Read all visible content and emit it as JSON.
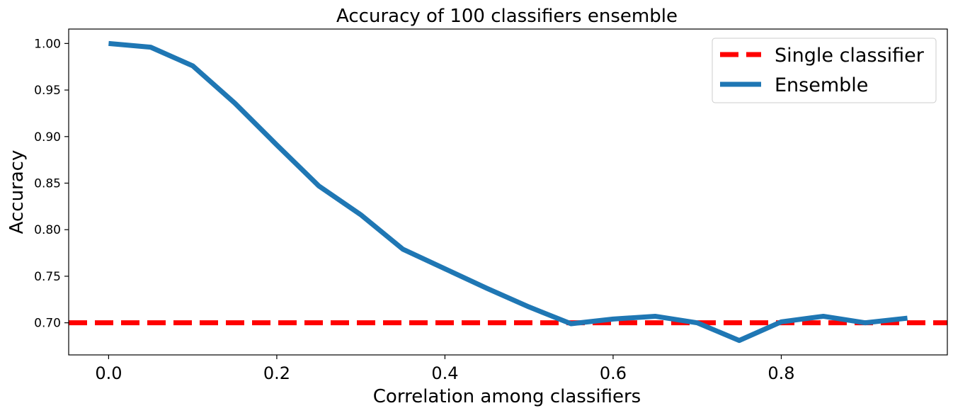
{
  "chart_data": {
    "type": "line",
    "title": "Accuracy of 100 classifiers ensemble",
    "xlabel": "Correlation among classifiers",
    "ylabel": "Accuracy",
    "xlim": [
      -0.0475,
      0.9975
    ],
    "ylim": [
      0.6655,
      1.0155
    ],
    "xticks": [
      "0.0",
      "0.2",
      "0.4",
      "0.6",
      "0.8"
    ],
    "xtick_values": [
      0.0,
      0.2,
      0.4,
      0.6,
      0.8
    ],
    "yticks": [
      "0.70",
      "0.75",
      "0.80",
      "0.85",
      "0.90",
      "0.95",
      "1.00"
    ],
    "ytick_values": [
      0.7,
      0.75,
      0.8,
      0.85,
      0.9,
      0.95,
      1.0
    ],
    "grid": false,
    "legend_position": "top-right",
    "series": [
      {
        "name": "Single classifier",
        "style": "dashed",
        "color": "#ff0000",
        "kind": "hline",
        "y": 0.7
      },
      {
        "name": "Ensemble",
        "style": "solid",
        "color": "#1f77b4",
        "x": [
          0.0,
          0.05,
          0.1,
          0.15,
          0.2,
          0.25,
          0.3,
          0.35,
          0.4,
          0.45,
          0.5,
          0.55,
          0.6,
          0.65,
          0.7,
          0.75,
          0.8,
          0.85,
          0.9,
          0.95
        ],
        "y": [
          1.0,
          0.996,
          0.976,
          0.936,
          0.891,
          0.847,
          0.816,
          0.779,
          0.758,
          0.737,
          0.717,
          0.699,
          0.704,
          0.707,
          0.7,
          0.681,
          0.701,
          0.707,
          0.7,
          0.705
        ]
      }
    ]
  }
}
